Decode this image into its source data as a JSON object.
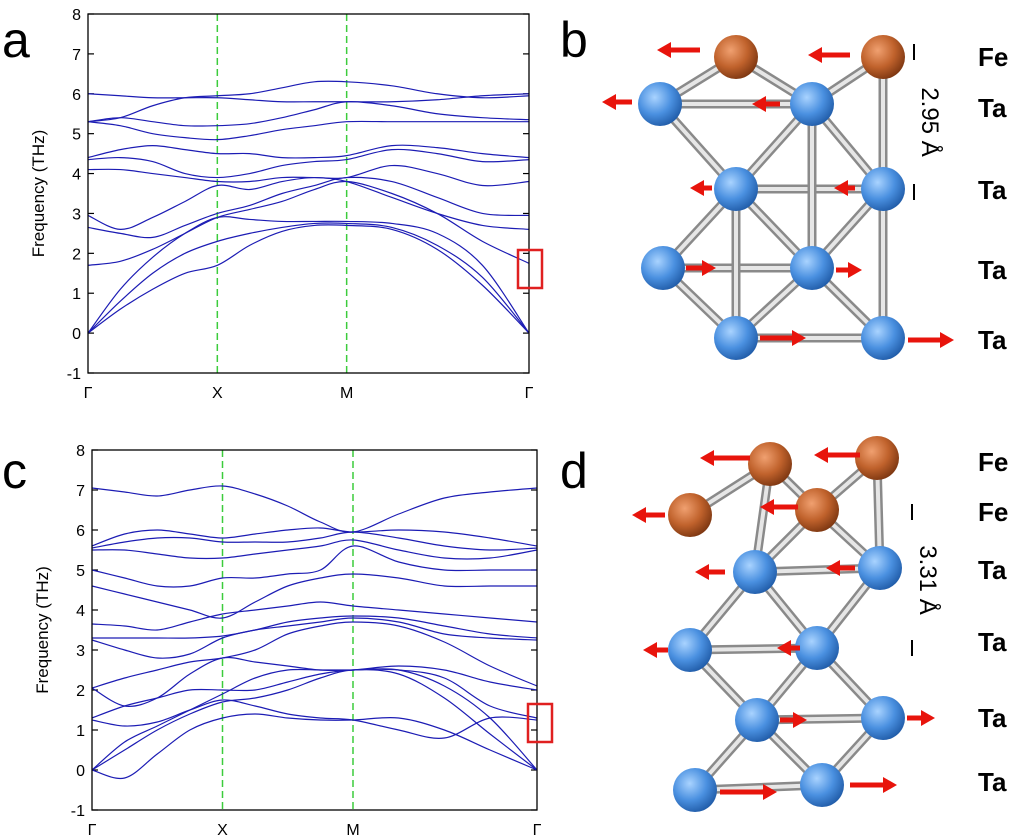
{
  "panels": [
    "a",
    "b",
    "c",
    "d"
  ],
  "chart_data": [
    {
      "type": "line",
      "y_label": "Frequency (THz)",
      "color": "#1c1cb4",
      "x": [
        0,
        0.25,
        0.5,
        0.75,
        1,
        1.25,
        1.5,
        1.75,
        2,
        2.35,
        2.7,
        3.05,
        3.41
      ],
      "xlim": [
        0,
        3.41
      ],
      "xticks": [
        {
          "value": 0,
          "label": "Γ"
        },
        {
          "value": 1,
          "label": "X"
        },
        {
          "value": 2,
          "label": "M"
        },
        {
          "value": 3.41,
          "label": "Γ"
        }
      ],
      "ylim": [
        -1,
        8
      ],
      "yticks": [
        -1,
        0,
        1,
        2,
        3,
        4,
        5,
        6,
        7,
        8
      ],
      "series": [
        {
          "values": [
            0,
            0.6,
            1.1,
            1.5,
            1.7,
            2.2,
            2.55,
            2.7,
            2.7,
            2.6,
            2.1,
            1.2,
            0
          ]
        },
        {
          "values": [
            0,
            0.8,
            1.5,
            2.0,
            2.3,
            2.5,
            2.65,
            2.75,
            2.75,
            2.65,
            2.2,
            1.4,
            0
          ]
        },
        {
          "values": [
            0,
            1.1,
            1.9,
            2.5,
            2.9,
            2.85,
            2.8,
            2.8,
            2.8,
            2.75,
            2.5,
            1.7,
            0
          ]
        },
        {
          "values": [
            1.7,
            1.8,
            2.1,
            2.5,
            2.9,
            3.1,
            3.3,
            3.6,
            3.8,
            3.5,
            3.0,
            2.3,
            1.75
          ]
        },
        {
          "values": [
            2.65,
            2.5,
            2.4,
            2.7,
            3.0,
            3.2,
            3.5,
            3.7,
            3.9,
            3.8,
            3.4,
            3.0,
            2.95
          ]
        },
        {
          "values": [
            2.95,
            2.6,
            2.9,
            3.3,
            3.7,
            3.6,
            3.8,
            3.9,
            3.8,
            3.4,
            3.0,
            2.7,
            2.6
          ]
        },
        {
          "values": [
            4.1,
            4.1,
            4.0,
            3.9,
            3.8,
            3.8,
            3.9,
            3.9,
            3.9,
            4.2,
            4.0,
            3.7,
            3.8
          ]
        },
        {
          "values": [
            4.35,
            4.4,
            4.3,
            4.0,
            3.9,
            4.0,
            4.2,
            4.3,
            4.35,
            4.6,
            4.5,
            4.3,
            4.35
          ]
        },
        {
          "values": [
            4.4,
            4.6,
            4.7,
            4.6,
            4.5,
            4.5,
            4.4,
            4.4,
            4.45,
            4.7,
            4.65,
            4.5,
            4.4
          ]
        },
        {
          "values": [
            5.3,
            5.2,
            5.0,
            4.9,
            4.85,
            4.95,
            5.1,
            5.2,
            5.3,
            5.3,
            5.3,
            5.3,
            5.3
          ]
        },
        {
          "values": [
            5.3,
            5.4,
            5.3,
            5.2,
            5.2,
            5.25,
            5.4,
            5.6,
            5.8,
            5.7,
            5.5,
            5.4,
            5.35
          ]
        },
        {
          "values": [
            6.0,
            5.95,
            5.9,
            5.9,
            5.9,
            5.85,
            5.8,
            5.8,
            5.8,
            5.8,
            5.85,
            5.95,
            6.0
          ]
        },
        {
          "values": [
            5.3,
            5.4,
            5.7,
            5.9,
            5.95,
            6.0,
            6.15,
            6.3,
            6.3,
            6.2,
            6.0,
            5.9,
            5.95
          ]
        }
      ]
    },
    {
      "type": "line",
      "y_label": "Frequency (THz)",
      "color": "#1c1cb4",
      "x": [
        0,
        0.25,
        0.5,
        0.75,
        1,
        1.25,
        1.5,
        1.75,
        2,
        2.35,
        2.7,
        3.05,
        3.41
      ],
      "xlim": [
        0,
        3.41
      ],
      "xticks": [
        {
          "value": 0,
          "label": "Γ"
        },
        {
          "value": 1,
          "label": "X"
        },
        {
          "value": 2,
          "label": "M"
        },
        {
          "value": 3.41,
          "label": "Γ"
        }
      ],
      "ylim": [
        -1,
        8
      ],
      "yticks": [
        -1,
        0,
        1,
        2,
        3,
        4,
        5,
        6,
        7,
        8
      ],
      "series": [
        {
          "values": [
            0,
            -0.2,
            0.4,
            1.0,
            1.3,
            1.4,
            1.3,
            1.25,
            1.25,
            1.3,
            1.0,
            0.5,
            0
          ]
        },
        {
          "values": [
            0,
            0.5,
            1.0,
            1.4,
            1.7,
            1.8,
            2.0,
            2.3,
            2.5,
            2.4,
            1.8,
            0.9,
            0
          ]
        },
        {
          "values": [
            0,
            0.7,
            1.1,
            1.5,
            1.9,
            2.3,
            2.5,
            2.5,
            2.5,
            2.5,
            2.1,
            1.3,
            0
          ]
        },
        {
          "values": [
            1.25,
            1.1,
            1.2,
            1.5,
            1.75,
            1.6,
            1.4,
            1.3,
            1.25,
            1.0,
            0.8,
            1.3,
            1.25
          ]
        },
        {
          "values": [
            1.3,
            1.6,
            1.8,
            2.0,
            2.0,
            2.0,
            2.2,
            2.4,
            2.5,
            2.5,
            2.3,
            1.6,
            1.3
          ]
        },
        {
          "values": [
            2.05,
            1.6,
            1.8,
            2.4,
            2.8,
            2.7,
            2.6,
            2.5,
            2.5,
            2.6,
            2.5,
            2.2,
            2.0
          ]
        },
        {
          "values": [
            2.05,
            2.3,
            2.5,
            2.7,
            2.8,
            3.0,
            3.4,
            3.6,
            3.7,
            3.6,
            3.2,
            2.6,
            2.1
          ]
        },
        {
          "values": [
            3.25,
            3.0,
            2.8,
            2.9,
            3.3,
            3.5,
            3.6,
            3.7,
            3.8,
            3.7,
            3.4,
            3.3,
            3.25
          ]
        },
        {
          "values": [
            3.3,
            3.3,
            3.3,
            3.3,
            3.35,
            3.5,
            3.7,
            3.8,
            3.85,
            3.8,
            3.6,
            3.4,
            3.3
          ]
        },
        {
          "values": [
            3.65,
            3.6,
            3.5,
            3.7,
            3.9,
            4.0,
            4.1,
            4.2,
            4.1,
            4.0,
            3.9,
            3.8,
            3.7
          ]
        },
        {
          "values": [
            4.6,
            4.4,
            4.2,
            4.0,
            3.8,
            4.2,
            4.6,
            4.8,
            4.9,
            4.8,
            4.6,
            4.6,
            4.6
          ]
        },
        {
          "values": [
            5.0,
            4.8,
            4.6,
            4.6,
            4.8,
            4.8,
            4.9,
            5.0,
            5.6,
            5.2,
            5.0,
            5.0,
            5.0
          ]
        },
        {
          "values": [
            5.5,
            5.5,
            5.4,
            5.3,
            5.3,
            5.4,
            5.5,
            5.6,
            5.75,
            5.5,
            5.3,
            5.3,
            5.5
          ]
        },
        {
          "values": [
            5.55,
            5.7,
            5.8,
            5.8,
            5.7,
            5.7,
            5.7,
            5.8,
            5.95,
            5.8,
            5.6,
            5.5,
            5.55
          ]
        },
        {
          "values": [
            5.6,
            5.9,
            6.0,
            5.9,
            5.8,
            5.9,
            6.0,
            6.05,
            5.95,
            6.0,
            5.95,
            5.8,
            5.6
          ]
        },
        {
          "values": [
            7.05,
            6.95,
            6.85,
            7.0,
            7.1,
            6.9,
            6.6,
            6.2,
            5.95,
            6.4,
            6.8,
            6.95,
            7.05
          ]
        }
      ]
    }
  ],
  "structure_b": {
    "labels": [
      "Fe",
      "Ta",
      "Ta",
      "Ta",
      "Ta"
    ],
    "distance": "2.95 Å"
  },
  "structure_d": {
    "labels": [
      "Fe",
      "Fe",
      "Ta",
      "Ta",
      "Ta",
      "Ta"
    ],
    "distance": "3.31 Å"
  }
}
